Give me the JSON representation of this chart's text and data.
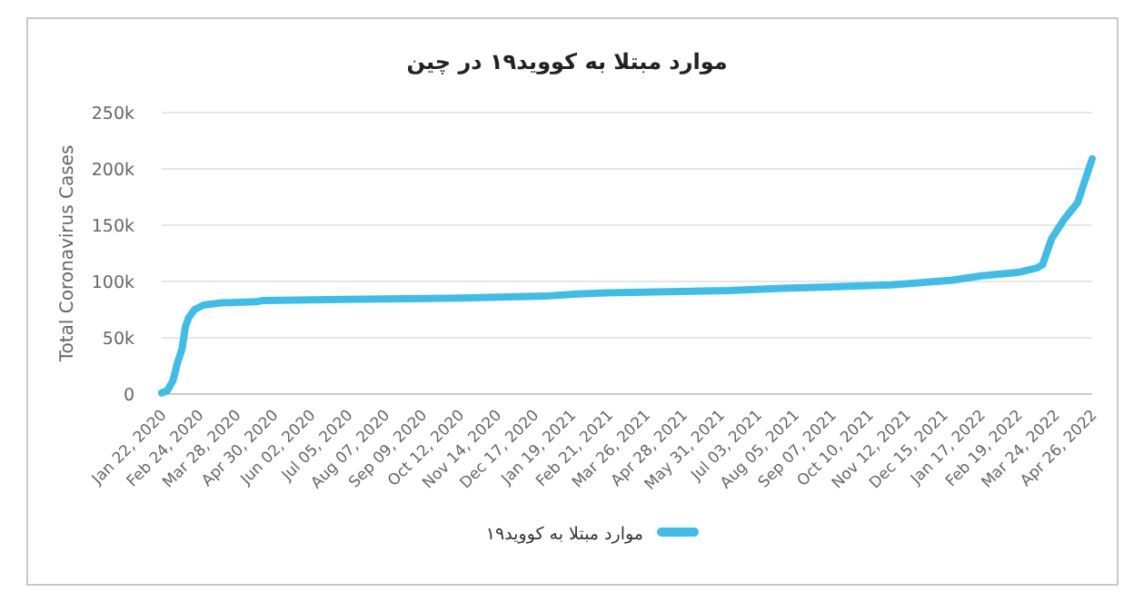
{
  "chart_data": {
    "type": "line",
    "title": "موارد مبتلا به کووید۱۹ در چین",
    "ylabel": "Total Coronavirus Cases",
    "legend": "bottom",
    "grid": "y",
    "marker": "none",
    "line_style": "solid",
    "xlim": [
      "2020-01-22",
      "2022-04-26"
    ],
    "ylim": [
      0,
      250000
    ],
    "yticks": [
      0,
      {
        "value": 50000,
        "label": "50k"
      },
      {
        "value": 100000,
        "label": "100k"
      },
      {
        "value": 150000,
        "label": "150k"
      },
      {
        "value": 200000,
        "label": "200k"
      },
      {
        "value": 250000,
        "label": "250k"
      }
    ],
    "xticks": [
      {
        "value": "2020-01-22",
        "label": "Jan 22, 2020"
      },
      {
        "value": "2020-02-24",
        "label": "Feb 24, 2020"
      },
      {
        "value": "2020-03-28",
        "label": "Mar 28, 2020"
      },
      {
        "value": "2020-04-30",
        "label": "Apr 30, 2020"
      },
      {
        "value": "2020-06-02",
        "label": "Jun 02, 2020"
      },
      {
        "value": "2020-07-05",
        "label": "Jul 05, 2020"
      },
      {
        "value": "2020-08-07",
        "label": "Aug 07, 2020"
      },
      {
        "value": "2020-09-09",
        "label": "Sep 09, 2020"
      },
      {
        "value": "2020-10-12",
        "label": "Oct 12, 2020"
      },
      {
        "value": "2020-11-14",
        "label": "Nov 14, 2020"
      },
      {
        "value": "2020-12-17",
        "label": "Dec 17, 2020"
      },
      {
        "value": "2021-01-19",
        "label": "Jan 19, 2021"
      },
      {
        "value": "2021-02-21",
        "label": "Feb 21, 2021"
      },
      {
        "value": "2021-03-26",
        "label": "Mar 26, 2021"
      },
      {
        "value": "2021-04-28",
        "label": "Apr 28, 2021"
      },
      {
        "value": "2021-05-31",
        "label": "May 31, 2021"
      },
      {
        "value": "2021-07-03",
        "label": "Jul 03, 2021"
      },
      {
        "value": "2021-08-05",
        "label": "Aug 05, 2021"
      },
      {
        "value": "2021-09-07",
        "label": "Sep 07, 2021"
      },
      {
        "value": "2021-10-10",
        "label": "Oct 10, 2021"
      },
      {
        "value": "2021-11-12",
        "label": "Nov 12, 2021"
      },
      {
        "value": "2021-12-15",
        "label": "Dec 15, 2021"
      },
      {
        "value": "2022-01-17",
        "label": "Jan 17, 2022"
      },
      {
        "value": "2022-02-19",
        "label": "Feb 19, 2022"
      },
      {
        "value": "2022-03-24",
        "label": "Mar 24, 2022"
      },
      {
        "value": "2022-04-26",
        "label": "Apr 26, 2022"
      }
    ],
    "x": [
      "2020-01-22",
      "2020-01-27",
      "2020-02-01",
      "2020-02-05",
      "2020-02-09",
      "2020-02-12",
      "2020-02-15",
      "2020-02-20",
      "2020-02-28",
      "2020-03-15",
      "2020-04-15",
      "2020-04-20",
      "2020-07-01",
      "2020-10-01",
      "2020-12-27",
      "2021-01-25",
      "2021-02-20",
      "2021-04-15",
      "2021-06-08",
      "2021-07-26",
      "2021-08-30",
      "2021-10-30",
      "2021-12-22",
      "2022-01-18",
      "2022-02-19",
      "2022-03-08",
      "2022-03-13",
      "2022-03-21",
      "2022-04-01",
      "2022-04-13",
      "2022-04-26"
    ],
    "series": [
      {
        "name": "موارد مبتلا به کووید۱۹",
        "color": "#3ebde8",
        "values": [
          1000,
          3000,
          12000,
          28000,
          40000,
          60000,
          68000,
          75000,
          79000,
          81000,
          82000,
          83000,
          84000,
          85000,
          87000,
          89000,
          90000,
          91000,
          92000,
          94000,
          95000,
          97000,
          101000,
          105000,
          108000,
          112000,
          115000,
          138000,
          155000,
          170000,
          209000
        ]
      }
    ]
  }
}
